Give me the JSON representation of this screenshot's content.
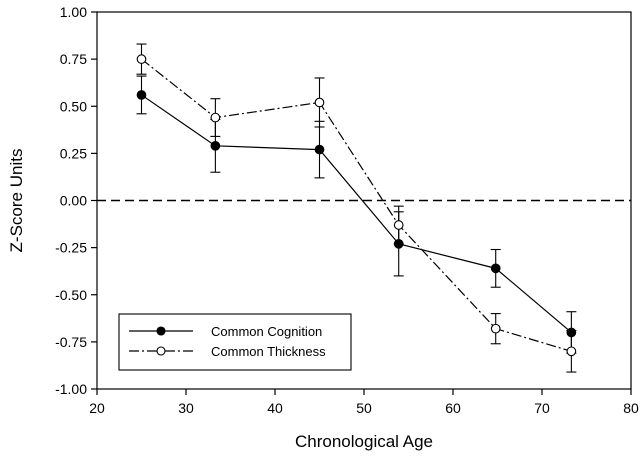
{
  "chart_data": {
    "type": "line",
    "xlabel": "Chronological Age",
    "ylabel": "Z-Score Units",
    "xlim": [
      20,
      80
    ],
    "ylim": [
      -1.0,
      1.0
    ],
    "xticks": [
      20,
      30,
      40,
      50,
      60,
      70,
      80
    ],
    "xtick_labels": [
      "20",
      "30",
      "40",
      "50",
      "60",
      "70",
      "80"
    ],
    "yticks": [
      1.0,
      0.75,
      0.5,
      0.25,
      0.0,
      -0.25,
      -0.5,
      -0.75,
      -1.0
    ],
    "ytick_labels": [
      "1.00",
      "0.75",
      "0.50",
      "0.25",
      "0.00",
      "-0.25",
      "-0.50",
      "-0.75",
      "-1.00"
    ],
    "reference_line_y": 0.0,
    "grid": false,
    "legend_position": "bottom-left",
    "series": [
      {
        "name": "Common Cognition",
        "marker": "filled-circle",
        "line_style": "solid",
        "color": "#000000",
        "points": [
          {
            "x": 25.0,
            "y": 0.56,
            "err": 0.1
          },
          {
            "x": 33.3,
            "y": 0.29,
            "err": 0.14
          },
          {
            "x": 45.0,
            "y": 0.27,
            "err": 0.15
          },
          {
            "x": 53.9,
            "y": -0.23,
            "err": 0.17
          },
          {
            "x": 64.8,
            "y": -0.36,
            "err": 0.1
          },
          {
            "x": 73.3,
            "y": -0.7,
            "err": 0.11
          }
        ]
      },
      {
        "name": "Common Thickness",
        "marker": "open-circle",
        "line_style": "dash-dot",
        "color": "#000000",
        "points": [
          {
            "x": 25.0,
            "y": 0.75,
            "err": 0.08
          },
          {
            "x": 33.3,
            "y": 0.44,
            "err": 0.1
          },
          {
            "x": 45.0,
            "y": 0.52,
            "err": 0.13
          },
          {
            "x": 53.9,
            "y": -0.13,
            "err": 0.1
          },
          {
            "x": 64.8,
            "y": -0.68,
            "err": 0.08
          },
          {
            "x": 73.3,
            "y": -0.8,
            "err": 0.11
          }
        ]
      }
    ]
  }
}
